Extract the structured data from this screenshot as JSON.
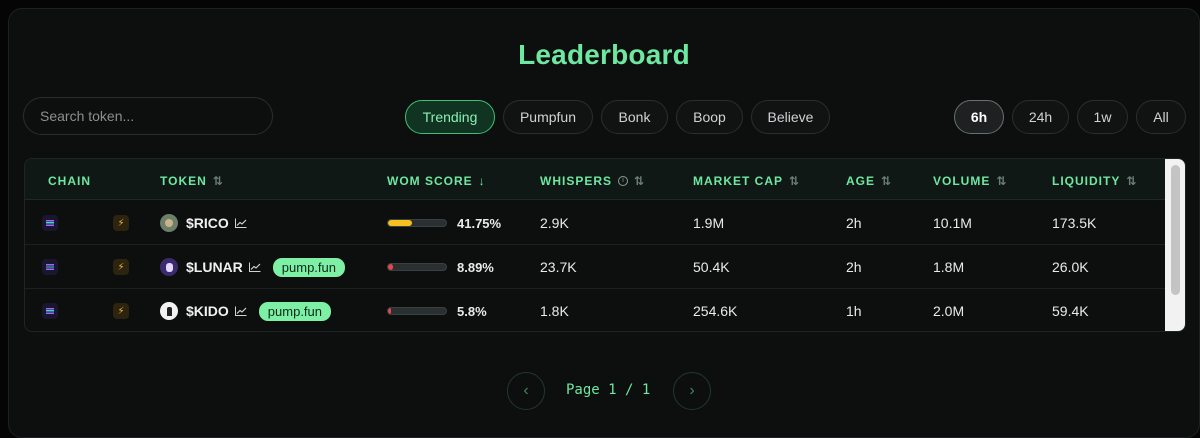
{
  "page_title": "Leaderboard",
  "search": {
    "placeholder": "Search token..."
  },
  "filters": [
    {
      "label": "Trending",
      "active": true
    },
    {
      "label": "Pumpfun",
      "active": false
    },
    {
      "label": "Bonk",
      "active": false
    },
    {
      "label": "Boop",
      "active": false
    },
    {
      "label": "Believe",
      "active": false
    }
  ],
  "timeframes": [
    {
      "label": "6h",
      "active": true
    },
    {
      "label": "24h",
      "active": false
    },
    {
      "label": "1w",
      "active": false
    },
    {
      "label": "All",
      "active": false
    }
  ],
  "columns": {
    "chain": "CHAIN",
    "token": "TOKEN",
    "wom_score": "WOM SCORE",
    "whispers": "WHISPERS",
    "market_cap": "MARKET CAP",
    "age": "AGE",
    "volume": "VOLUME",
    "liquidity": "LIQUIDITY"
  },
  "rows": [
    {
      "chain_icon": "solana-icon",
      "launch_icon": "lightning-icon",
      "avatar_icon": "rico-avatar",
      "token": "$RICO",
      "tag": "",
      "wom_score": "41.75%",
      "wom_fraction": 0.4175,
      "wom_color": "#f5c022",
      "whispers": "2.9K",
      "market_cap": "1.9M",
      "age": "2h",
      "volume": "10.1M",
      "liquidity": "173.5K"
    },
    {
      "chain_icon": "solana-icon",
      "launch_icon": "lightning-icon",
      "avatar_icon": "lunar-avatar",
      "token": "$LUNAR",
      "tag": "pump.fun",
      "wom_score": "8.89%",
      "wom_fraction": 0.0889,
      "wom_color": "#e5484d",
      "whispers": "23.7K",
      "market_cap": "50.4K",
      "age": "2h",
      "volume": "1.8M",
      "liquidity": "26.0K"
    },
    {
      "chain_icon": "solana-icon",
      "launch_icon": "lightning-icon",
      "avatar_icon": "kido-avatar",
      "token": "$KIDO",
      "tag": "pump.fun",
      "wom_score": "5.8%",
      "wom_fraction": 0.058,
      "wom_color": "#e5484d",
      "whispers": "1.8K",
      "market_cap": "254.6K",
      "age": "1h",
      "volume": "2.0M",
      "liquidity": "59.4K"
    }
  ],
  "pagination": {
    "label": "Page 1 / 1"
  },
  "colors": {
    "accent": "#6ee7a0",
    "tag_bg": "#7df0a6"
  }
}
